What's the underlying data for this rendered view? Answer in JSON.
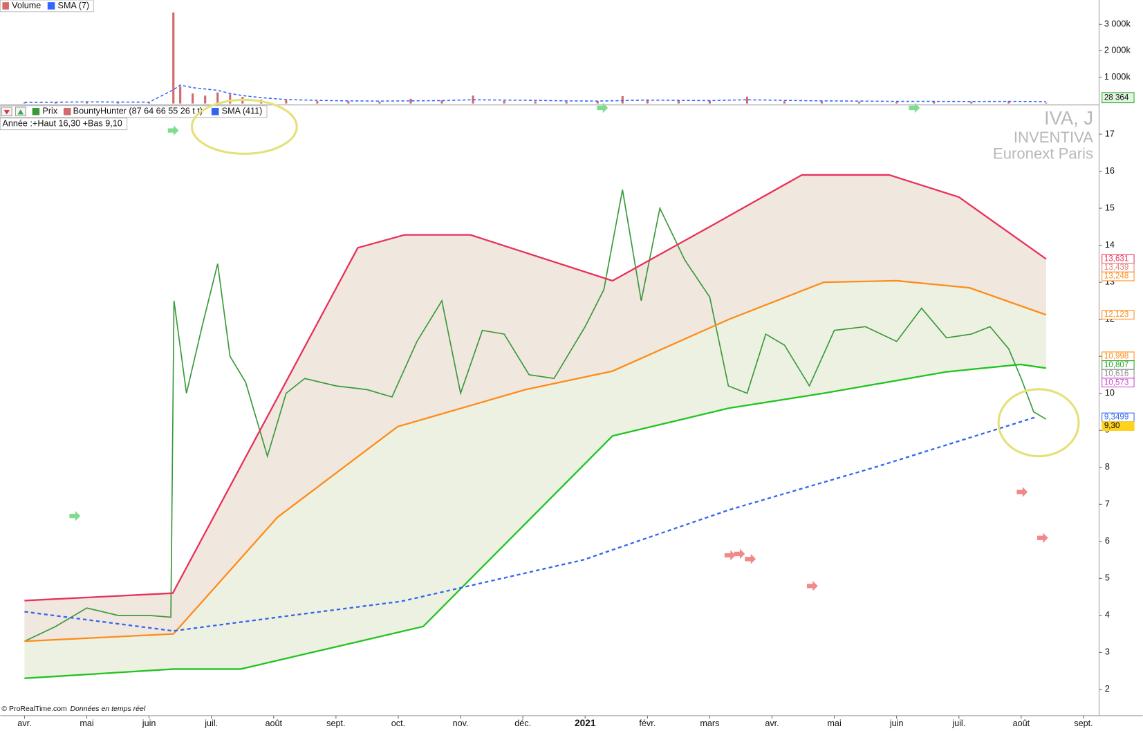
{
  "header": {
    "indicator_legend": "BountyHunter (87 64 66 55 26 t t)",
    "year_stats": "Année :+Haut 16,30 +Bas 9,10"
  },
  "watermark": {
    "ticker": "IVA, J",
    "name": "INVENTIVA",
    "exchange": "Euronext Paris"
  },
  "footer": {
    "source": "© ProRealTime.com",
    "note": "Données en temps réel"
  },
  "chart_data": [
    {
      "type": "bar",
      "xlim": [
        -0.39,
        17.25
      ],
      "x": [
        0,
        0.5,
        1,
        1.5,
        2,
        2.39,
        2.5,
        2.7,
        2.9,
        3.1,
        3.3,
        3.5,
        3.8,
        4.2,
        4.7,
        5.2,
        5.7,
        6.2,
        6.7,
        7.2,
        7.7,
        8.2,
        8.7,
        9.2,
        9.6,
        10.0,
        10.5,
        11.0,
        11.6,
        12.2,
        12.8,
        13.4,
        14.0,
        14.6,
        15.2,
        15.8,
        16.4
      ],
      "series": [
        {
          "name": "Volume",
          "color": "#d46a6a",
          "values": [
            40000,
            60000,
            80000,
            50000,
            30000,
            3450000,
            650000,
            380000,
            300000,
            420000,
            350000,
            250000,
            150000,
            120000,
            90000,
            80000,
            70000,
            180000,
            120000,
            300000,
            100000,
            80000,
            70000,
            90000,
            280000,
            150000,
            120000,
            100000,
            260000,
            90000,
            80000,
            70000,
            60000,
            80000,
            70000,
            90000,
            28364
          ]
        },
        {
          "name": "SMA (7)",
          "color": "#3366ff",
          "style": "dashed-line",
          "values": [
            40000,
            50000,
            60000,
            55000,
            50000,
            520000,
            700000,
            600000,
            550000,
            500000,
            380000,
            300000,
            220000,
            150000,
            120000,
            100000,
            90000,
            100000,
            110000,
            140000,
            130000,
            120000,
            100000,
            90000,
            110000,
            130000,
            120000,
            110000,
            140000,
            120000,
            100000,
            90000,
            80000,
            80000,
            75000,
            80000,
            70000
          ]
        }
      ],
      "ylim": [
        0,
        3870000
      ],
      "yticks": [
        {
          "value": 1000000,
          "label": "1 000k"
        },
        {
          "value": 2000000,
          "label": "2 000k"
        },
        {
          "value": 3000000,
          "label": "3 000k"
        }
      ],
      "current": {
        "value": 28364,
        "label": "28 364"
      }
    },
    {
      "type": "line",
      "xlim": [
        -0.39,
        17.25
      ],
      "xticks": [
        {
          "value": 0,
          "label": "avr."
        },
        {
          "value": 1,
          "label": "mai"
        },
        {
          "value": 2,
          "label": "juin"
        },
        {
          "value": 3,
          "label": "juil."
        },
        {
          "value": 4,
          "label": "août"
        },
        {
          "value": 5,
          "label": "sept."
        },
        {
          "value": 6,
          "label": "oct."
        },
        {
          "value": 7,
          "label": "nov."
        },
        {
          "value": 8,
          "label": "déc."
        },
        {
          "value": 9,
          "label": "2021"
        },
        {
          "value": 10,
          "label": "févr."
        },
        {
          "value": 11,
          "label": "mars"
        },
        {
          "value": 12,
          "label": "avr."
        },
        {
          "value": 13,
          "label": "mai"
        },
        {
          "value": 14,
          "label": "juin"
        },
        {
          "value": 15,
          "label": "juil."
        },
        {
          "value": 16,
          "label": "août"
        },
        {
          "value": 17,
          "label": "sept."
        }
      ],
      "ylim": [
        1.33,
        17.77
      ],
      "yticks": [
        2,
        3,
        4,
        5,
        6,
        7,
        8,
        9,
        10,
        11,
        12,
        13,
        14,
        15,
        16,
        17
      ],
      "x": [
        0,
        0.5,
        1,
        1.5,
        2,
        2.35,
        2.4,
        2.6,
        2.85,
        3.1,
        3.3,
        3.55,
        3.9,
        4.2,
        4.5,
        5.0,
        5.5,
        5.9,
        6.3,
        6.7,
        7.0,
        7.35,
        7.7,
        8.1,
        8.5,
        9.0,
        9.3,
        9.6,
        9.9,
        10.2,
        10.6,
        11.0,
        11.3,
        11.6,
        11.9,
        12.2,
        12.6,
        13.0,
        13.5,
        14.0,
        14.4,
        14.8,
        15.2,
        15.5,
        15.8,
        16.0,
        16.2,
        16.4
      ],
      "series": [
        {
          "name": "Prix",
          "color": "#3a9a3a",
          "values": [
            3.3,
            3.7,
            4.2,
            4.0,
            4.0,
            3.95,
            12.5,
            10.0,
            11.8,
            13.5,
            11.0,
            10.3,
            8.3,
            10.0,
            10.4,
            10.2,
            10.1,
            9.9,
            11.4,
            12.5,
            10.0,
            11.7,
            11.6,
            10.5,
            10.4,
            11.8,
            12.8,
            15.5,
            12.5,
            15.0,
            13.6,
            12.6,
            10.2,
            10.0,
            11.6,
            11.3,
            10.2,
            11.7,
            11.8,
            11.4,
            12.3,
            11.5,
            11.6,
            11.8,
            11.2,
            10.4,
            9.5,
            9.3
          ]
        },
        {
          "color": "#e8315b",
          "x": [
            0,
            2.38,
            5.35,
            6.1,
            7.16,
            9.44,
            11.0,
            12.48,
            13.88,
            15.0,
            16.4
          ],
          "values": [
            4.4,
            4.6,
            13.93,
            14.28,
            14.28,
            13.04,
            14.5,
            15.9,
            15.9,
            15.3,
            13.63
          ]
        },
        {
          "color": "#ff8c1a",
          "x": [
            0,
            2.39,
            4.06,
            5.99,
            8.04,
            9.44,
            11.31,
            12.83,
            14.0,
            15.17,
            16.4
          ],
          "values": [
            3.3,
            3.5,
            6.65,
            9.1,
            10.1,
            10.6,
            12.0,
            13.0,
            13.04,
            12.85,
            12.12
          ]
        },
        {
          "color": "#22c322",
          "x": [
            0,
            2.39,
            3.47,
            6.4,
            9.44,
            11.31,
            12.83,
            14.8,
            15.99,
            16.4
          ],
          "values": [
            2.3,
            2.55,
            2.55,
            3.7,
            8.85,
            9.6,
            10.0,
            10.58,
            10.78,
            10.68
          ]
        },
        {
          "name": "SMA (411)",
          "color": "#3366ee",
          "style": "dashed",
          "x": [
            0,
            2.39,
            4.29,
            6.05,
            8.97,
            11.31,
            13.65,
            16.22
          ],
          "values": [
            4.1,
            3.58,
            4.0,
            4.38,
            5.5,
            6.85,
            8.0,
            9.3499
          ]
        }
      ],
      "price_labels": [
        {
          "value": 13.631,
          "label": "13,631",
          "color": "#e8315b"
        },
        {
          "value": 13.439,
          "label": "13,439",
          "color": "#e08080"
        },
        {
          "value": 13.248,
          "label": "13,248",
          "color": "#ff8c1a"
        },
        {
          "value": 12.123,
          "label": "12,123",
          "color": "#ff8c1a"
        },
        {
          "value": 10.998,
          "label": "10,998",
          "color": "#ff8c1a"
        },
        {
          "value": 10.807,
          "label": "10,807",
          "color": "#22a322"
        },
        {
          "value": 10.616,
          "label": "10,616",
          "color": "#888888"
        },
        {
          "value": 10.573,
          "label": "10,573",
          "color": "#cc44cc"
        },
        {
          "value": 9.3499,
          "label": "9,3499",
          "color": "#3366ee"
        },
        {
          "value": 9.3,
          "label": "9,30",
          "color": "#000000",
          "background": "#ffd21f"
        }
      ]
    }
  ]
}
